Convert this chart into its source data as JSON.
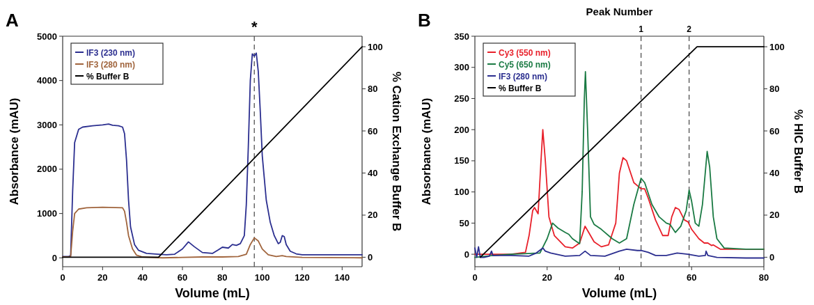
{
  "chart_data": [
    {
      "type": "line",
      "title": "A",
      "xlabel": "Volume (mL)",
      "ylabel": "Absorbance (mAU)",
      "y2label": "% Cation Exchange Buffer B",
      "xlim": [
        0,
        150
      ],
      "ylim": [
        -200,
        5000
      ],
      "y2lim": [
        -4.5,
        105
      ],
      "xticks": [
        0,
        20,
        40,
        60,
        80,
        100,
        120,
        140
      ],
      "yticks": [
        0,
        1000,
        2000,
        3000,
        4000,
        5000
      ],
      "y2ticks": [
        0,
        20,
        40,
        60,
        80,
        100
      ],
      "legend": "top left",
      "grid": false,
      "line_style": "solid",
      "ref_lines": [
        {
          "axis": "x",
          "value": 96,
          "label": "*",
          "line_style": "dashed"
        }
      ],
      "series": [
        {
          "name": "IF3 (230 nm)",
          "color": "#2b2e8f",
          "x": [
            0,
            3,
            4,
            5,
            6,
            8,
            10,
            15,
            20,
            23,
            25,
            28,
            30,
            31,
            32,
            33,
            34,
            36,
            38,
            42,
            48,
            52,
            56,
            60,
            63,
            66,
            70,
            75,
            78,
            80,
            83,
            85,
            87,
            89,
            91,
            92,
            93,
            94,
            95,
            96,
            97,
            98,
            99,
            100,
            102,
            104,
            106,
            108,
            109,
            110,
            111,
            112,
            114,
            117,
            120,
            130,
            140,
            150
          ],
          "values": [
            30,
            30,
            50,
            1500,
            2600,
            2900,
            2950,
            2980,
            3000,
            3020,
            2990,
            2980,
            2950,
            2800,
            2200,
            1300,
            700,
            300,
            170,
            100,
            80,
            70,
            80,
            200,
            360,
            250,
            120,
            100,
            180,
            240,
            220,
            300,
            280,
            320,
            500,
            1200,
            2500,
            4000,
            4600,
            4550,
            4620,
            4200,
            3300,
            2300,
            1300,
            800,
            500,
            320,
            350,
            500,
            480,
            300,
            150,
            90,
            70,
            70,
            70,
            70
          ]
        },
        {
          "name": "IF3 (280 nm)",
          "color": "#a0643c",
          "x": [
            0,
            3,
            4,
            5,
            6,
            8,
            12,
            20,
            30,
            31,
            32,
            33,
            35,
            37,
            40,
            50,
            60,
            70,
            80,
            88,
            92,
            94,
            96,
            98,
            100,
            103,
            107,
            110,
            112,
            120,
            150
          ],
          "values": [
            20,
            20,
            30,
            600,
            1000,
            1100,
            1130,
            1140,
            1130,
            1050,
            800,
            500,
            200,
            60,
            20,
            0,
            10,
            20,
            20,
            30,
            80,
            300,
            450,
            380,
            200,
            70,
            30,
            50,
            30,
            10,
            0
          ]
        },
        {
          "name": "% Buffer B",
          "color": "#000000",
          "axis": "y2",
          "x": [
            0,
            48,
            150
          ],
          "values": [
            0,
            0,
            100
          ]
        }
      ]
    },
    {
      "type": "line",
      "title": "B",
      "xlabel": "Volume (mL)",
      "ylabel": "Absorbance (mAU)",
      "y2label": "% HIC Buffer B",
      "xlim": [
        0,
        80
      ],
      "ylim": [
        -20,
        350
      ],
      "y2lim": [
        -4.5,
        105
      ],
      "xticks": [
        0,
        20,
        40,
        60,
        80
      ],
      "yticks": [
        0,
        50,
        100,
        150,
        200,
        250,
        300,
        350
      ],
      "y2ticks": [
        0,
        20,
        40,
        60,
        80,
        100
      ],
      "legend": "top left",
      "grid": false,
      "line_style": "solid",
      "annotations": [
        "Peak Number",
        "1",
        "2"
      ],
      "ref_lines": [
        {
          "axis": "x",
          "value": 46,
          "line_style": "dashed"
        },
        {
          "axis": "x",
          "value": 59.3,
          "line_style": "dashed"
        }
      ],
      "series": [
        {
          "name": "Cy3 (550 nm)",
          "color": "#e8202a",
          "x": [
            0,
            10,
            14,
            15,
            16,
            16.5,
            17.5,
            18.3,
            18.8,
            19.5,
            20.5,
            22,
            25,
            27,
            29,
            30.5,
            31.5,
            33,
            35,
            37,
            39,
            40,
            41,
            42,
            44,
            46,
            47,
            48,
            50,
            52,
            53.5,
            54.5,
            55.5,
            56.5,
            58,
            59,
            60,
            62,
            63.5,
            64.5,
            65.5,
            66,
            68,
            70,
            80
          ],
          "values": [
            0,
            0,
            3,
            30,
            70,
            75,
            65,
            150,
            200,
            150,
            60,
            30,
            12,
            10,
            18,
            45,
            35,
            20,
            12,
            15,
            50,
            130,
            155,
            150,
            115,
            105,
            105,
            90,
            55,
            30,
            30,
            60,
            75,
            72,
            55,
            52,
            40,
            25,
            18,
            18,
            14,
            15,
            8,
            8,
            8
          ]
        },
        {
          "name": "Cy5 (650 nm)",
          "color": "#1a7a43",
          "x": [
            0,
            5,
            10,
            18,
            20,
            21.5,
            23,
            25,
            26,
            27,
            29,
            29.7,
            30.3,
            30.6,
            31.2,
            32,
            33,
            35,
            38,
            40,
            42,
            44,
            46,
            47,
            49,
            51,
            53,
            54,
            55.5,
            57,
            58.5,
            59.3,
            60,
            61,
            62,
            63,
            64.3,
            65,
            66,
            67,
            69,
            75,
            80
          ],
          "values": [
            -5,
            -2,
            0,
            2,
            25,
            50,
            42,
            35,
            32,
            25,
            17,
            100,
            250,
            293,
            200,
            60,
            48,
            40,
            25,
            18,
            25,
            80,
            122,
            115,
            80,
            60,
            50,
            48,
            35,
            45,
            70,
            103,
            85,
            50,
            45,
            80,
            165,
            140,
            60,
            25,
            10,
            8,
            8
          ]
        },
        {
          "name": "IF3 (280 nm)",
          "color": "#2b2e8f",
          "x": [
            0,
            0.5,
            1,
            1.5,
            2.5,
            4,
            4.6,
            5,
            10,
            15,
            17,
            18.8,
            19.5,
            21,
            25,
            29,
            30.5,
            32,
            36,
            40,
            42,
            45,
            46,
            48,
            50,
            53,
            56,
            59,
            62,
            63.8,
            64,
            64.5,
            67,
            75,
            80
          ],
          "values": [
            10,
            -5,
            12,
            -5,
            -5,
            -3,
            5,
            -2,
            -2,
            -3,
            2,
            10,
            5,
            2,
            -3,
            -2,
            5,
            -2,
            -3,
            5,
            8,
            6,
            6,
            3,
            -2,
            -2,
            2,
            0,
            -3,
            -2,
            5,
            -2,
            -5,
            -6,
            -6
          ]
        },
        {
          "name": "% Buffer B",
          "color": "#000000",
          "axis": "y2",
          "x": [
            1.5,
            61.5,
            80
          ],
          "values": [
            0,
            100,
            100
          ]
        }
      ]
    }
  ]
}
